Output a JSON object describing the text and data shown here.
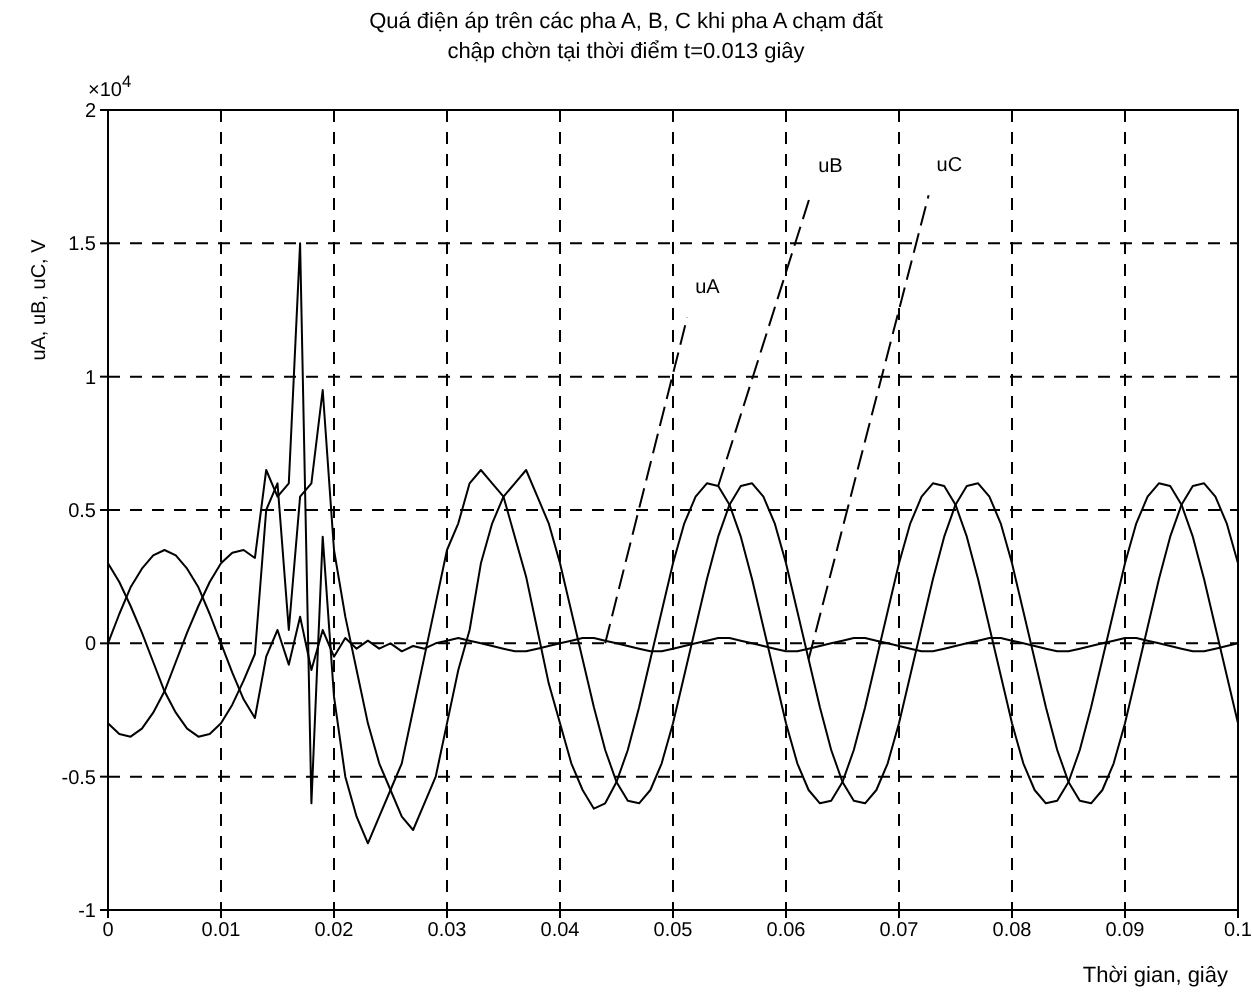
{
  "chart_data": {
    "type": "line",
    "title": "Quá điện áp trên các pha A, B, C khi pha A chạm đất",
    "subtitle": "chập chờn tại thời điểm t=0.013 giây",
    "xlabel": "Thời gian, giây",
    "ylabel": "uA, uB, uC, V",
    "annotations": [
      "×10$^{4}$",
      {
        "text": "uA",
        "x": 0.044,
        "y": 0
      },
      {
        "text": "uB",
        "x": 0.054,
        "y": 0.59
      },
      {
        "text": "uC",
        "x": 0.062,
        "y": -0.06
      }
    ],
    "x": [
      0,
      0.001,
      0.002,
      0.003,
      0.004,
      0.005,
      0.006,
      0.007,
      0.008,
      0.009,
      0.01,
      0.011,
      0.012,
      0.013,
      0.014,
      0.015,
      0.016,
      0.017,
      0.018,
      0.019,
      0.02,
      0.021,
      0.022,
      0.023,
      0.024,
      0.025,
      0.026,
      0.027,
      0.028,
      0.029,
      0.03,
      0.031,
      0.032,
      0.033,
      0.034,
      0.035,
      0.036,
      0.037,
      0.038,
      0.039,
      0.04,
      0.041,
      0.042,
      0.043,
      0.044,
      0.045,
      0.046,
      0.047,
      0.048,
      0.049,
      0.05,
      0.051,
      0.052,
      0.053,
      0.054,
      0.055,
      0.056,
      0.057,
      0.058,
      0.059,
      0.06,
      0.061,
      0.062,
      0.063,
      0.064,
      0.065,
      0.066,
      0.067,
      0.068,
      0.069,
      0.07,
      0.071,
      0.072,
      0.073,
      0.074,
      0.075,
      0.076,
      0.077,
      0.078,
      0.079,
      0.08,
      0.081,
      0.082,
      0.083,
      0.084,
      0.085,
      0.086,
      0.087,
      0.088,
      0.089,
      0.09,
      0.091,
      0.092,
      0.093,
      0.094,
      0.095,
      0.096,
      0.097,
      0.098,
      0.099,
      0.1
    ],
    "series": [
      {
        "color": "#000000",
        "values": [
          0,
          0.11,
          0.21,
          0.28,
          0.33,
          0.35,
          0.33,
          0.28,
          0.21,
          0.11,
          0,
          -0.11,
          -0.21,
          -0.28,
          -0.05,
          0.05,
          -0.08,
          0.1,
          -0.1,
          0.05,
          -0.05,
          0.02,
          -0.02,
          0.01,
          -0.02,
          0,
          -0.03,
          -0.01,
          -0.02,
          0,
          0.01,
          0.02,
          0.01,
          0,
          -0.01,
          -0.02,
          -0.03,
          -0.03,
          -0.02,
          -0.01,
          0,
          0.01,
          0.02,
          0.02,
          0.01,
          0,
          -0.01,
          -0.02,
          -0.03,
          -0.03,
          -0.02,
          -0.01,
          0,
          0.01,
          0.02,
          0.02,
          0.01,
          0,
          -0.01,
          -0.02,
          -0.03,
          -0.03,
          -0.02,
          -0.01,
          0,
          0.01,
          0.02,
          0.02,
          0.01,
          0,
          -0.01,
          -0.02,
          -0.03,
          -0.03,
          -0.02,
          -0.01,
          0,
          0.01,
          0.02,
          0.02,
          0.01,
          0,
          -0.01,
          -0.02,
          -0.03,
          -0.03,
          -0.02,
          -0.01,
          0,
          0.01,
          0.02,
          0.02,
          0.01,
          0,
          -0.01,
          -0.02,
          -0.03,
          -0.03,
          -0.02,
          -0.01,
          0
        ]
      },
      {
        "color": "#000000",
        "values": [
          -0.3,
          -0.34,
          -0.35,
          -0.32,
          -0.26,
          -0.18,
          -0.07,
          0.04,
          0.14,
          0.23,
          0.3,
          0.34,
          0.35,
          0.32,
          0.65,
          0.55,
          0.6,
          1.5,
          -0.6,
          0.4,
          -0.2,
          -0.5,
          -0.65,
          -0.75,
          -0.65,
          -0.55,
          -0.45,
          -0.25,
          -0.05,
          0.15,
          0.35,
          0.45,
          0.6,
          0.65,
          0.6,
          0.55,
          0.4,
          0.25,
          0.05,
          -0.15,
          -0.3,
          -0.45,
          -0.55,
          -0.62,
          -0.6,
          -0.52,
          -0.4,
          -0.24,
          -0.06,
          0.12,
          0.3,
          0.45,
          0.55,
          0.6,
          0.59,
          0.52,
          0.4,
          0.24,
          0.06,
          -0.12,
          -0.3,
          -0.45,
          -0.55,
          -0.6,
          -0.59,
          -0.52,
          -0.4,
          -0.24,
          -0.06,
          0.12,
          0.3,
          0.45,
          0.55,
          0.6,
          0.59,
          0.52,
          0.4,
          0.24,
          0.06,
          -0.12,
          -0.3,
          -0.45,
          -0.55,
          -0.6,
          -0.59,
          -0.52,
          -0.4,
          -0.24,
          -0.06,
          0.12,
          0.3,
          0.45,
          0.55,
          0.6,
          0.59,
          0.52,
          0.4,
          0.24,
          0.06,
          -0.12,
          -0.3
        ]
      },
      {
        "color": "#000000",
        "values": [
          0.3,
          0.23,
          0.14,
          0.04,
          -0.07,
          -0.18,
          -0.26,
          -0.32,
          -0.35,
          -0.34,
          -0.3,
          -0.23,
          -0.14,
          -0.04,
          0.5,
          0.6,
          0.05,
          0.55,
          0.6,
          0.95,
          0.35,
          0.1,
          -0.1,
          -0.3,
          -0.45,
          -0.55,
          -0.65,
          -0.7,
          -0.6,
          -0.5,
          -0.3,
          -0.1,
          0.05,
          0.3,
          0.45,
          0.55,
          0.6,
          0.65,
          0.55,
          0.45,
          0.3,
          0.12,
          -0.06,
          -0.24,
          -0.4,
          -0.52,
          -0.59,
          -0.6,
          -0.55,
          -0.45,
          -0.3,
          -0.12,
          0.06,
          0.24,
          0.4,
          0.52,
          0.59,
          0.6,
          0.55,
          0.45,
          0.3,
          0.12,
          -0.06,
          -0.24,
          -0.4,
          -0.52,
          -0.59,
          -0.6,
          -0.55,
          -0.45,
          -0.3,
          -0.12,
          0.06,
          0.24,
          0.4,
          0.52,
          0.59,
          0.6,
          0.55,
          0.45,
          0.3,
          0.12,
          -0.06,
          -0.24,
          -0.4,
          -0.52,
          -0.59,
          -0.6,
          -0.55,
          -0.45,
          -0.3,
          -0.12,
          0.06,
          0.24,
          0.4,
          0.52,
          0.59,
          0.6,
          0.55,
          0.45,
          0.3
        ]
      }
    ],
    "xlim": [
      0,
      0.1
    ],
    "xticks": [
      0,
      0.01,
      0.02,
      0.03,
      0.04,
      0.05,
      0.06,
      0.07,
      0.08,
      0.09,
      0.1
    ],
    "ylim": [
      -1,
      2
    ],
    "yticks": [
      -1,
      -0.5,
      0,
      0.5,
      1,
      1.5,
      2
    ],
    "grid": true,
    "legend": false,
    "marker": "none"
  }
}
